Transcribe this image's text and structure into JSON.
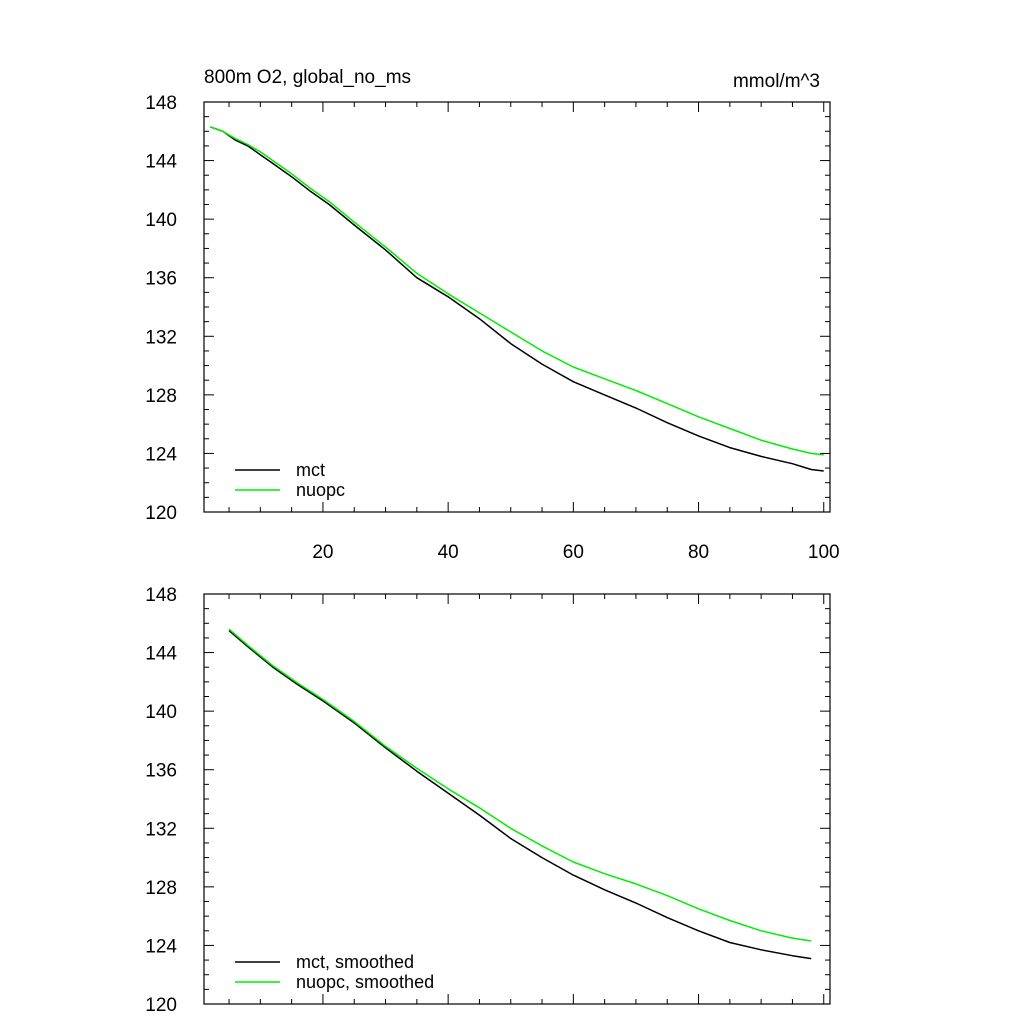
{
  "chart_data": [
    {
      "type": "line",
      "title": "800m O2, global_no_ms",
      "units": "mmol/m^3",
      "xlim": [
        1,
        101
      ],
      "ylim": [
        120,
        148
      ],
      "x_ticks": [
        20,
        40,
        60,
        80,
        100
      ],
      "y_ticks": [
        120,
        124,
        128,
        132,
        136,
        140,
        144,
        148
      ],
      "x_tick_labels": [
        "20",
        "40",
        "60",
        "80",
        "100"
      ],
      "y_tick_labels": [
        "120",
        "124",
        "128",
        "132",
        "136",
        "140",
        "144",
        "148"
      ],
      "legend_position": "bottom-left",
      "grid": false,
      "series": [
        {
          "name": "mct",
          "color": "#000000",
          "x": [
            2,
            4,
            6,
            8,
            10,
            12,
            15,
            18,
            21,
            25,
            30,
            35,
            40,
            45,
            50,
            55,
            60,
            65,
            70,
            75,
            80,
            85,
            90,
            95,
            98,
            100
          ],
          "y": [
            146.3,
            146.0,
            145.4,
            145.0,
            144.4,
            143.8,
            142.9,
            141.9,
            141.0,
            139.6,
            137.9,
            136.0,
            134.7,
            133.2,
            131.5,
            130.1,
            128.9,
            128.0,
            127.1,
            126.1,
            125.2,
            124.4,
            123.8,
            123.3,
            122.9,
            122.8
          ]
        },
        {
          "name": "nuopc",
          "color": "#00ee00",
          "x": [
            2,
            4,
            6,
            8,
            10,
            12,
            15,
            18,
            21,
            25,
            30,
            35,
            40,
            45,
            50,
            55,
            60,
            65,
            70,
            75,
            80,
            85,
            90,
            95,
            98,
            100
          ],
          "y": [
            146.3,
            146.0,
            145.5,
            145.1,
            144.6,
            144.0,
            143.1,
            142.1,
            141.2,
            139.8,
            138.1,
            136.3,
            134.9,
            133.6,
            132.3,
            131.0,
            129.9,
            129.1,
            128.3,
            127.4,
            126.5,
            125.7,
            124.9,
            124.3,
            124.0,
            123.9
          ]
        }
      ]
    },
    {
      "type": "line",
      "xlim": [
        1,
        101
      ],
      "ylim": [
        120,
        148
      ],
      "x_ticks": [
        20,
        40,
        60,
        80,
        100
      ],
      "y_ticks": [
        120,
        124,
        128,
        132,
        136,
        140,
        144,
        148
      ],
      "y_tick_labels": [
        "120",
        "124",
        "128",
        "132",
        "136",
        "140",
        "144",
        "148"
      ],
      "legend_position": "bottom-left",
      "grid": false,
      "series": [
        {
          "name": "mct, smoothed",
          "color": "#000000",
          "x": [
            5,
            8,
            12,
            16,
            20,
            25,
            30,
            35,
            40,
            45,
            50,
            55,
            60,
            65,
            70,
            75,
            80,
            85,
            90,
            95,
            98
          ],
          "y": [
            145.5,
            144.4,
            143.0,
            141.8,
            140.7,
            139.2,
            137.5,
            135.9,
            134.4,
            132.9,
            131.3,
            130.0,
            128.8,
            127.8,
            126.9,
            125.9,
            125.0,
            124.2,
            123.7,
            123.3,
            123.1
          ]
        },
        {
          "name": "nuopc, smoothed",
          "color": "#00ee00",
          "x": [
            5,
            8,
            12,
            16,
            20,
            25,
            30,
            35,
            40,
            45,
            50,
            55,
            60,
            65,
            70,
            75,
            80,
            85,
            90,
            95,
            98
          ],
          "y": [
            145.6,
            144.5,
            143.1,
            141.9,
            140.8,
            139.3,
            137.6,
            136.1,
            134.7,
            133.4,
            132.0,
            130.8,
            129.7,
            128.9,
            128.2,
            127.4,
            126.5,
            125.7,
            125.0,
            124.5,
            124.3
          ]
        }
      ]
    }
  ]
}
